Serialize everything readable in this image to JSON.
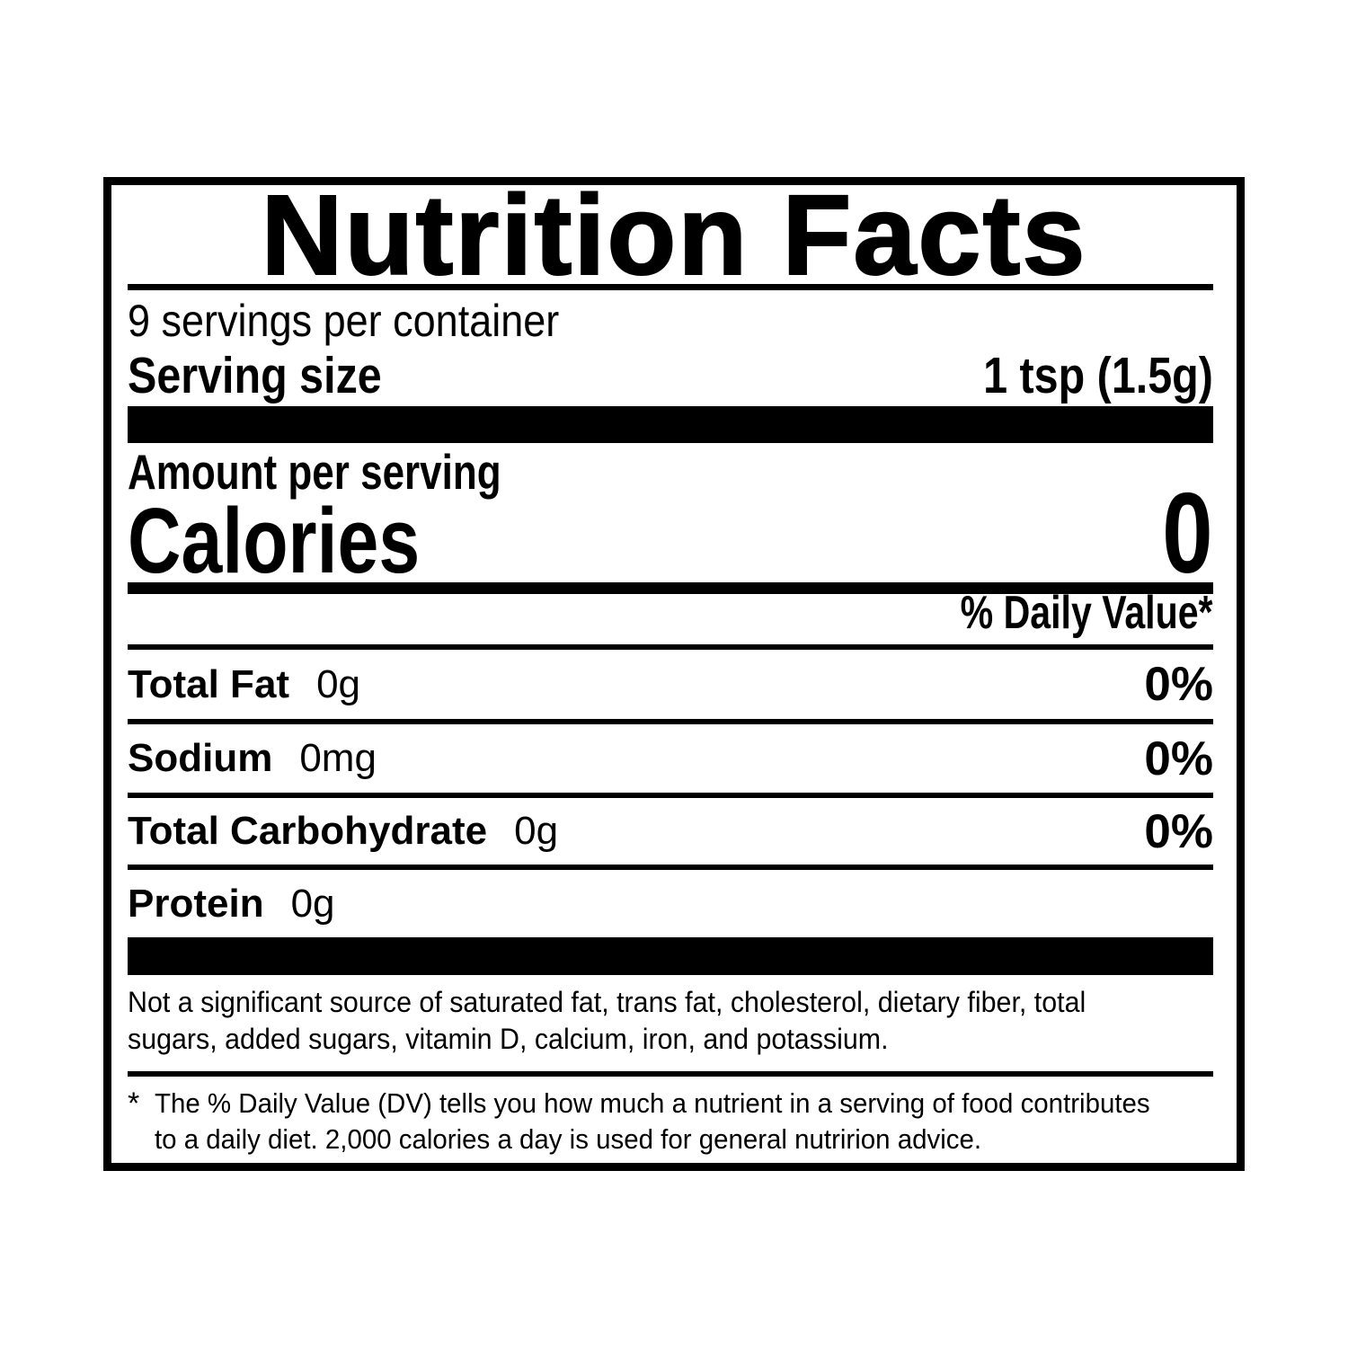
{
  "label": {
    "title": "Nutrition Facts",
    "servings_per_container": "9 servings per container",
    "serving_size": {
      "label": "Serving size",
      "value": "1 tsp (1.5g)"
    },
    "amount_per_serving": "Amount per serving",
    "calories": {
      "label": "Calories",
      "value": "0"
    },
    "daily_value_header": "% Daily Value*",
    "nutrients": [
      {
        "name": "Total Fat",
        "amount": "0g",
        "dv": "0%"
      },
      {
        "name": "Sodium",
        "amount": "0mg",
        "dv": "0%"
      },
      {
        "name": "Total Carbohydrate",
        "amount": "0g",
        "dv": "0%"
      },
      {
        "name": "Protein",
        "amount": "0g",
        "dv": ""
      }
    ],
    "not_significant": {
      "lines": [
        "Not a significant source of saturated fat, trans fat, cholesterol, dietary fiber, total",
        "sugars, added sugars, vitamin D, calcium, iron, and potassium."
      ]
    },
    "footnote": {
      "asterisk": "*",
      "lines": [
        "The % Daily Value (DV) tells you how much a nutrient in a serving of food contributes",
        "to a daily diet. 2,000 calories a day is used for general nutririon advice."
      ]
    },
    "colors": {
      "ink": "#000000",
      "paper": "#ffffff"
    }
  }
}
